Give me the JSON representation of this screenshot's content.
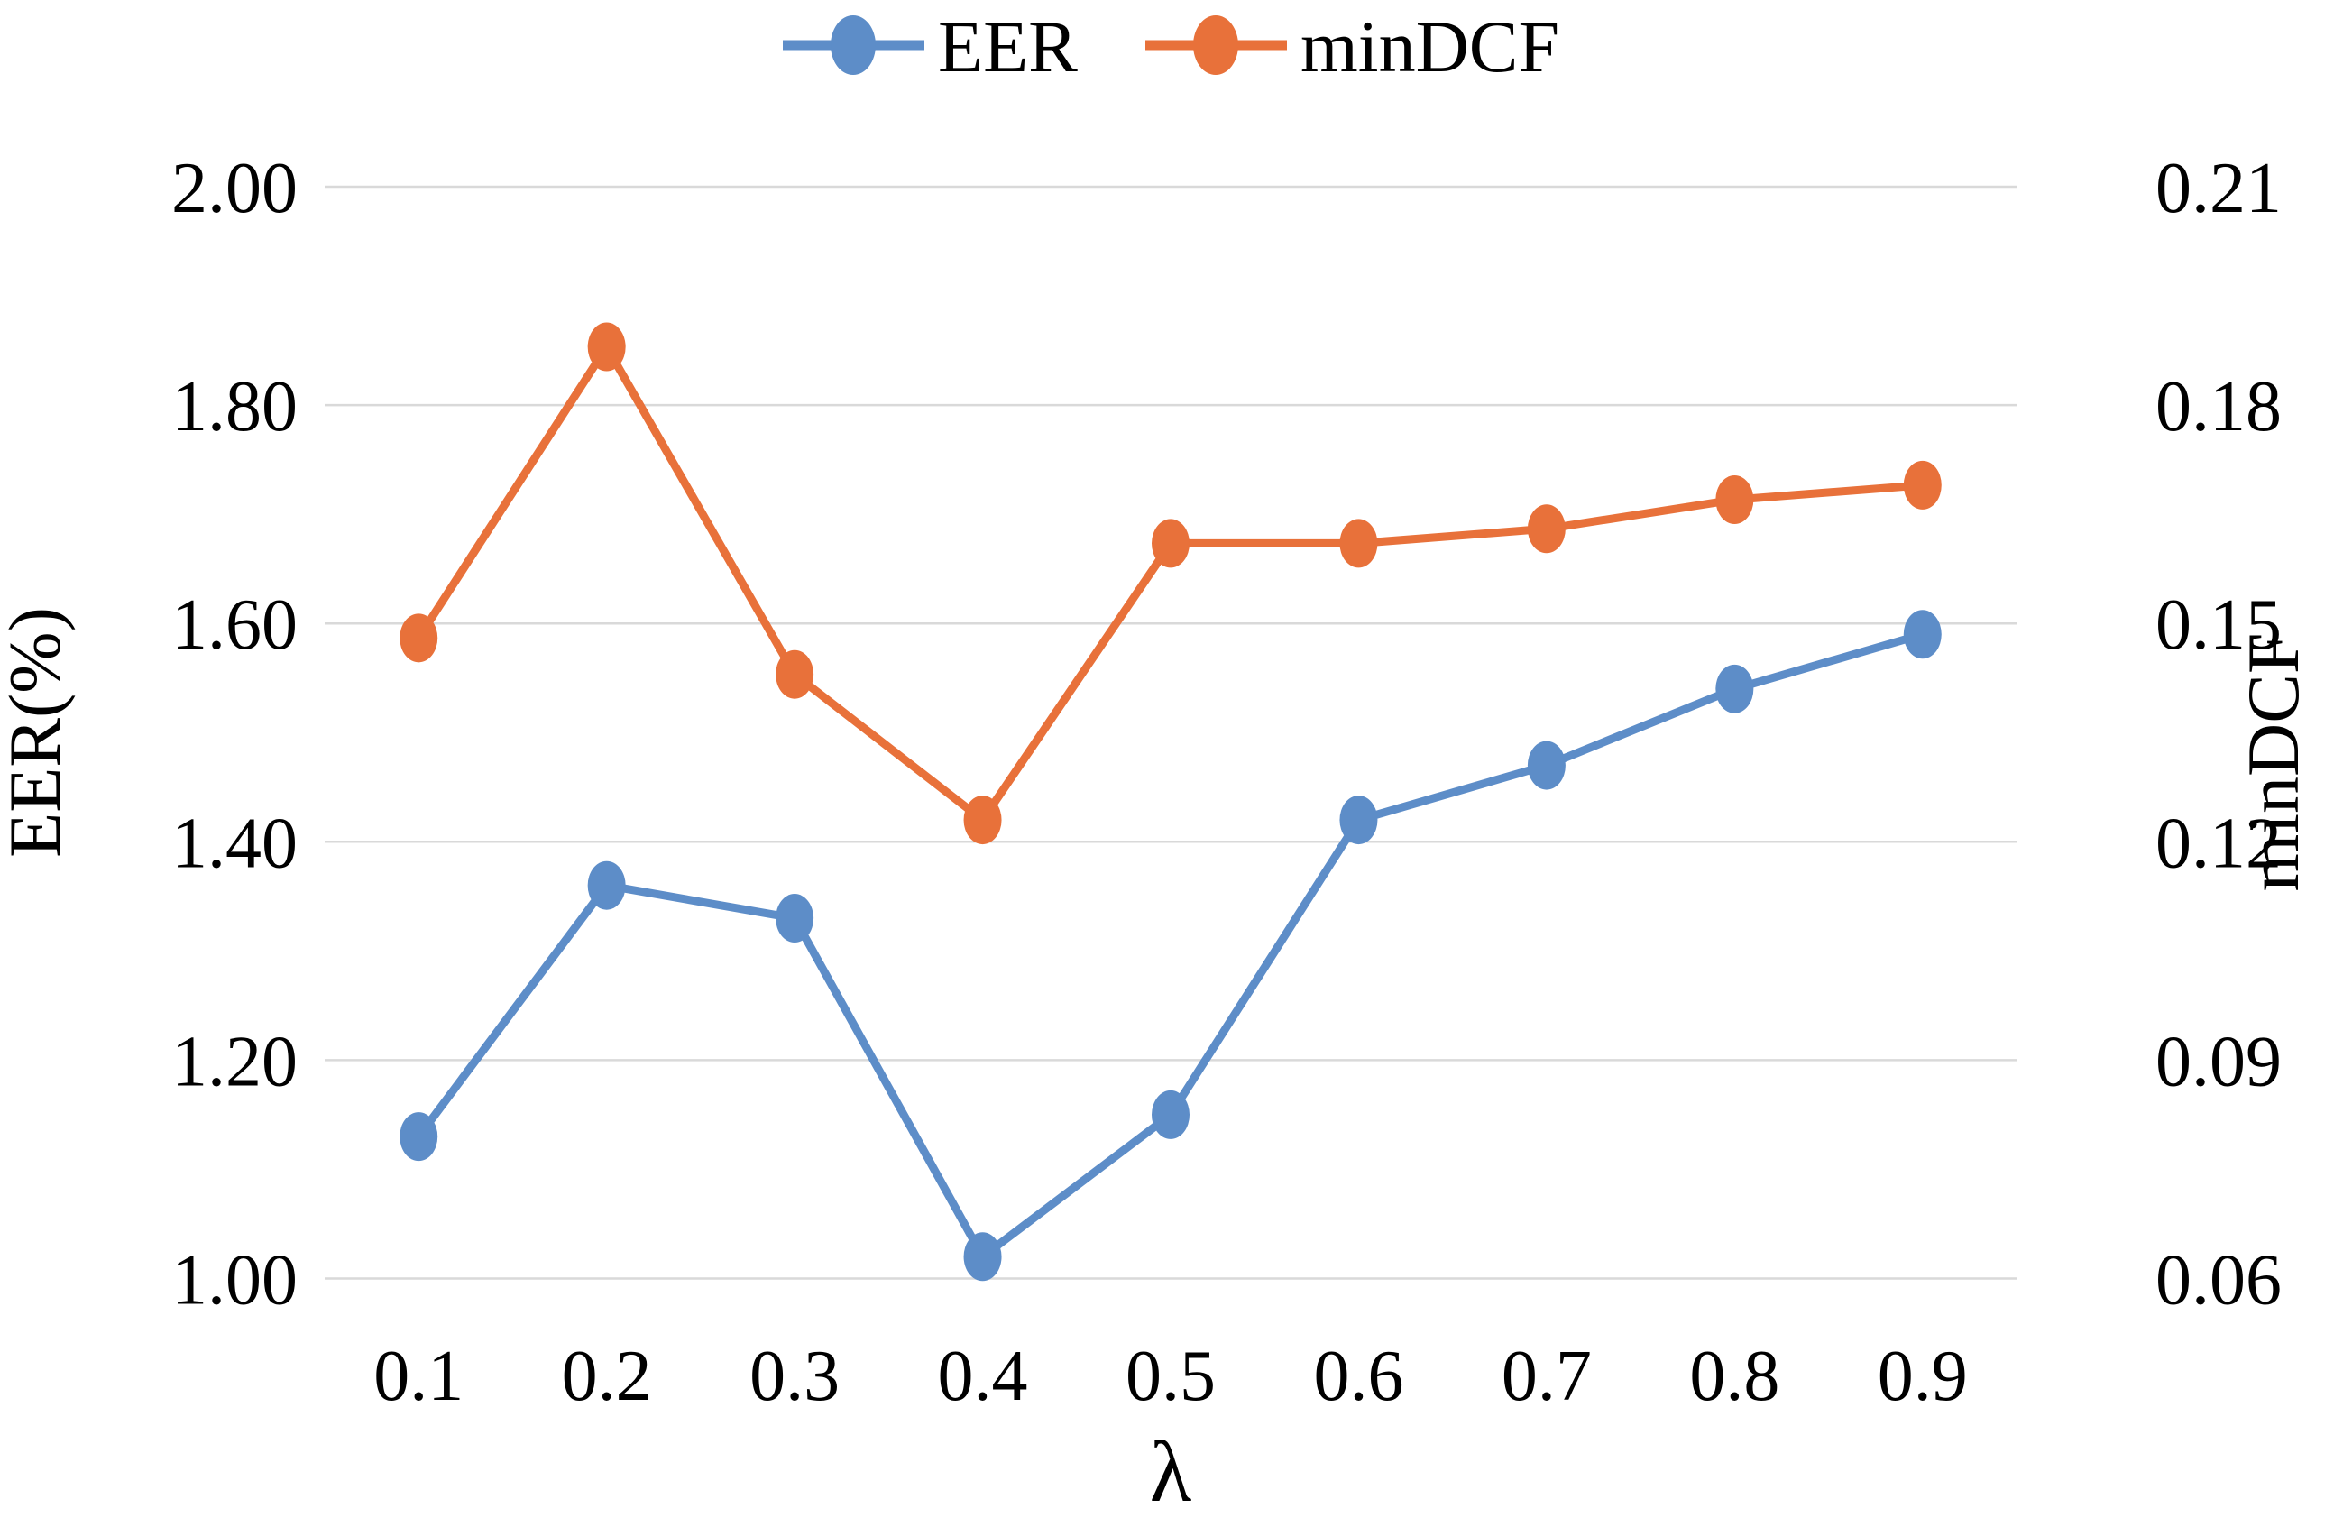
{
  "legend": {
    "items": [
      {
        "label": "EER",
        "color": "#5D8DC8"
      },
      {
        "label": "minDCF",
        "color": "#E8713A"
      }
    ]
  },
  "axes": {
    "left_title": "EER(%)",
    "right_title": "minDCF",
    "x_title": "λ"
  },
  "chart_data": {
    "type": "line",
    "title": "",
    "xlabel": "λ",
    "ylabel_left": "EER(%)",
    "ylabel_right": "minDCF",
    "categories": [
      0.1,
      0.2,
      0.3,
      0.4,
      0.5,
      0.6,
      0.7,
      0.8,
      0.9
    ],
    "x_tick_labels": [
      "0.1",
      "0.2",
      "0.3",
      "0.4",
      "0.5",
      "0.6",
      "0.7",
      "0.8",
      "0.9"
    ],
    "series": [
      {
        "name": "EER",
        "axis": "left",
        "color": "#5D8DC8",
        "values": [
          1.13,
          1.36,
          1.33,
          1.02,
          1.15,
          1.42,
          1.47,
          1.54,
          1.59
        ]
      },
      {
        "name": "minDCF",
        "axis": "right",
        "color": "#E8713A",
        "values": [
          0.148,
          0.188,
          0.143,
          0.123,
          0.161,
          0.161,
          0.163,
          0.167,
          0.169
        ]
      }
    ],
    "ylim_left": [
      1.0,
      2.0
    ],
    "ylim_right": [
      0.06,
      0.21
    ],
    "left_tick_labels": [
      "2.00",
      "1.80",
      "1.60",
      "1.40",
      "1.20",
      "1.00"
    ],
    "left_tick_values": [
      2.0,
      1.8,
      1.6,
      1.4,
      1.2,
      1.0
    ],
    "right_tick_labels": [
      "0.21",
      "0.18",
      "0.15",
      "0.12",
      "0.09",
      "0.06"
    ],
    "grid": true,
    "grid_color": "#D9D9D9",
    "legend_position": "top-center",
    "background_color": "#FFFFFF",
    "marker": "ellipse"
  }
}
